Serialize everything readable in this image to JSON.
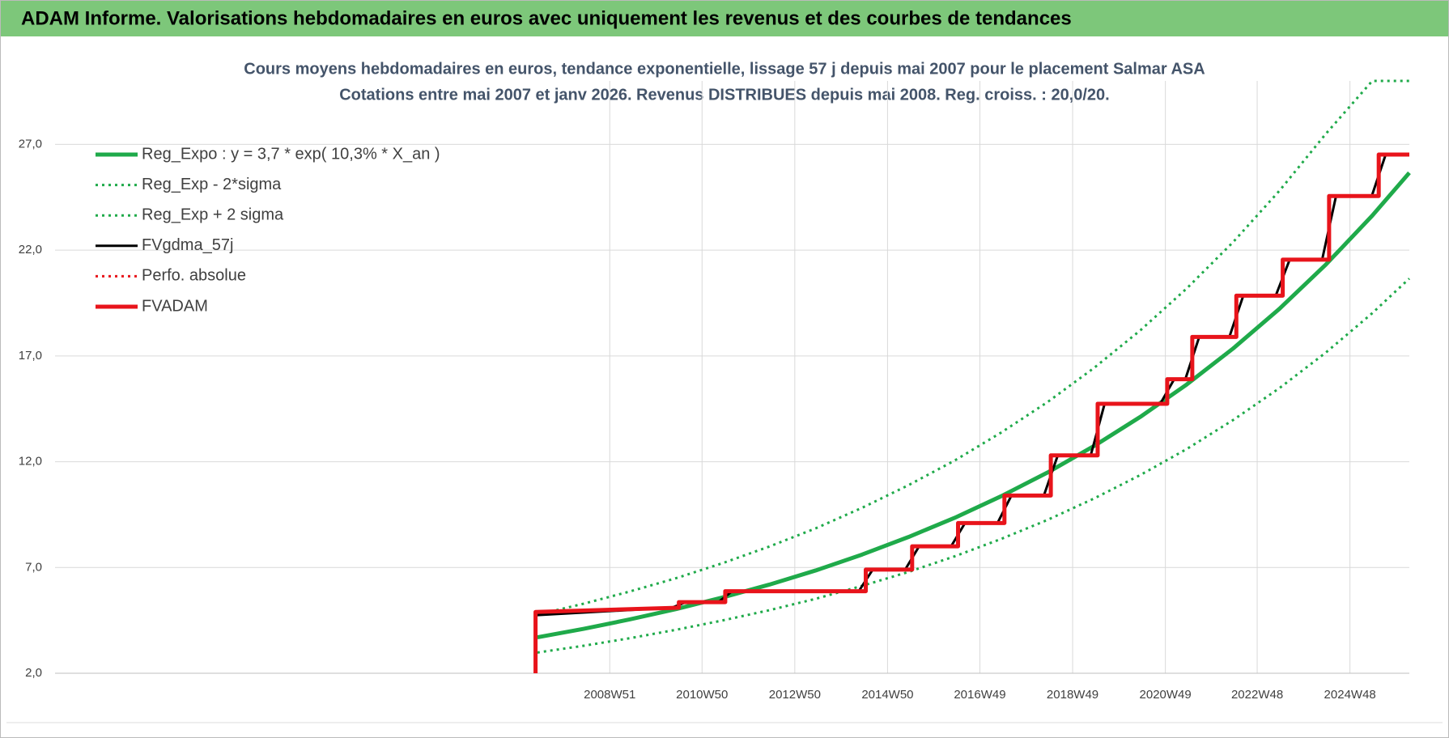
{
  "header": {
    "title": "ADAM Informe. Valorisations hebdomadaires en euros avec uniquement les revenus et des courbes de tendances"
  },
  "chart_data": {
    "type": "line",
    "title": "Cours moyens hebdomadaires en euros, tendance exponentielle, lissage 57 j depuis mai 2007 pour le placement Salmar ASA",
    "subtitle": "Cotations entre mai 2007 et janv 2026. Revenus DISTRIBUES depuis mai 2008. Reg. croiss. : 20,0/20.",
    "xlim": [
      1997,
      2026.2
    ],
    "xticks": [
      {
        "value": 2008.96,
        "label": "2008W51"
      },
      {
        "value": 2010.95,
        "label": "2010W50"
      },
      {
        "value": 2012.95,
        "label": "2012W50"
      },
      {
        "value": 2014.95,
        "label": "2014W50"
      },
      {
        "value": 2016.94,
        "label": "2016W49"
      },
      {
        "value": 2018.94,
        "label": "2018W49"
      },
      {
        "value": 2020.94,
        "label": "2020W49"
      },
      {
        "value": 2022.92,
        "label": "2022W48"
      },
      {
        "value": 2024.92,
        "label": "2024W48"
      }
    ],
    "ylim": [
      2,
      30
    ],
    "yticks": [
      {
        "value": 2,
        "label": "2,0"
      },
      {
        "value": 7,
        "label": "7,0"
      },
      {
        "value": 12,
        "label": "12,0"
      },
      {
        "value": 17,
        "label": "17,0"
      },
      {
        "value": 22,
        "label": "22,0"
      },
      {
        "value": 27,
        "label": "27,0"
      }
    ],
    "grid": true,
    "legend": "top-left",
    "series": [
      {
        "name": "Reg_Expo : y = 3,7 * exp( 10,3% *  X_an )",
        "color": "#1faa4a",
        "linestyle": "solid",
        "x": [
          2007.4,
          2008.4,
          2009.4,
          2010.4,
          2011.4,
          2012.4,
          2013.4,
          2014.4,
          2015.4,
          2016.4,
          2017.4,
          2018.4,
          2019.4,
          2020.4,
          2021.4,
          2022.4,
          2023.4,
          2024.4,
          2025.4,
          2026.2
        ],
        "values": [
          3.7,
          4.1,
          4.55,
          5.04,
          5.59,
          6.19,
          6.86,
          7.61,
          8.44,
          9.35,
          10.37,
          11.49,
          12.74,
          14.12,
          15.65,
          17.35,
          19.23,
          21.32,
          23.63,
          25.66
        ]
      },
      {
        "name": "Reg_Exp - 2*sigma",
        "color": "#1faa4a",
        "linestyle": "dotted",
        "x": [
          2007.4,
          2008.4,
          2009.4,
          2010.4,
          2011.4,
          2012.4,
          2013.4,
          2014.4,
          2015.4,
          2016.4,
          2017.4,
          2018.4,
          2019.4,
          2020.4,
          2021.4,
          2022.4,
          2023.4,
          2024.4,
          2025.4,
          2026.2
        ],
        "values": [
          2.98,
          3.3,
          3.66,
          4.06,
          4.5,
          4.98,
          5.52,
          6.13,
          6.79,
          7.53,
          8.35,
          9.25,
          10.26,
          11.37,
          12.6,
          13.97,
          15.48,
          17.16,
          19.02,
          20.66
        ]
      },
      {
        "name": "Reg_Exp + 2 sigma",
        "color": "#1faa4a",
        "linestyle": "dotted",
        "x": [
          2007.4,
          2008.4,
          2009.4,
          2010.4,
          2011.4,
          2012.4,
          2013.4,
          2014.4,
          2015.4,
          2016.4,
          2017.4,
          2018.4,
          2019.4,
          2020.4,
          2021.4,
          2022.4,
          2023.4,
          2024.4,
          2025.4,
          2026.2
        ],
        "values": [
          4.77,
          5.29,
          5.87,
          6.5,
          7.21,
          7.99,
          8.85,
          9.82,
          10.89,
          12.06,
          13.38,
          14.82,
          16.43,
          18.21,
          20.19,
          22.38,
          24.81,
          27.5,
          30.0,
          30.0
        ]
      },
      {
        "name": "FVgdma_57j",
        "color": "#000000",
        "linestyle": "solid",
        "x": [
          2007.4,
          2010.3,
          2010.45,
          2010.6,
          2011.3,
          2011.45,
          2011.6,
          2014.33,
          2014.48,
          2014.63,
          2015.33,
          2015.48,
          2015.63,
          2016.32,
          2016.47,
          2016.62,
          2017.32,
          2017.47,
          2017.62,
          2018.32,
          2018.47,
          2018.62,
          2019.33,
          2019.48,
          2019.63,
          2020.83,
          2020.98,
          2021.13,
          2021.37,
          2021.52,
          2021.67,
          2022.32,
          2022.47,
          2022.62,
          2023.32,
          2023.47,
          2023.62,
          2024.32,
          2024.47,
          2024.62,
          2025.39,
          2025.54,
          2025.69,
          2026.2
        ],
        "values": [
          4.75,
          5.1,
          5.23,
          5.36,
          5.36,
          5.62,
          5.88,
          5.88,
          6.39,
          6.9,
          6.9,
          7.45,
          8.0,
          8.0,
          8.55,
          9.1,
          9.1,
          9.75,
          10.4,
          10.4,
          11.35,
          12.3,
          12.3,
          13.52,
          14.74,
          14.74,
          15.32,
          15.9,
          15.9,
          16.9,
          17.9,
          17.9,
          18.88,
          19.85,
          19.85,
          20.7,
          21.55,
          21.55,
          23.06,
          24.56,
          24.56,
          25.54,
          26.52,
          26.52
        ]
      },
      {
        "name": "Perfo. absolue",
        "color": "#e8141b",
        "linestyle": "dotted",
        "x": [],
        "values": []
      },
      {
        "name": "FVADAM",
        "color": "#e8141b",
        "linestyle": "solid",
        "x": [
          2007.36,
          2007.36,
          2010.45,
          2010.45,
          2011.45,
          2011.45,
          2014.48,
          2014.48,
          2015.48,
          2015.48,
          2016.47,
          2016.47,
          2017.47,
          2017.47,
          2018.47,
          2018.47,
          2019.48,
          2019.48,
          2020.98,
          2020.98,
          2021.52,
          2021.52,
          2022.47,
          2022.47,
          2023.47,
          2023.47,
          2024.47,
          2024.47,
          2025.54,
          2025.54,
          2026.2
        ],
        "values": [
          2.0,
          4.9,
          5.1,
          5.36,
          5.36,
          5.88,
          5.88,
          6.9,
          6.9,
          8.0,
          8.0,
          9.1,
          9.1,
          10.4,
          10.4,
          12.3,
          12.3,
          14.74,
          14.74,
          15.9,
          15.9,
          17.9,
          17.9,
          19.85,
          19.85,
          21.55,
          21.55,
          24.56,
          24.56,
          26.52,
          26.52
        ]
      }
    ]
  }
}
